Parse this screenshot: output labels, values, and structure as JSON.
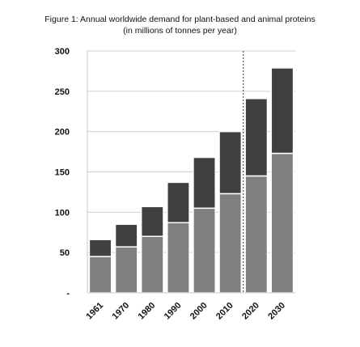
{
  "chart_data": {
    "type": "bar",
    "stacked": true,
    "title": "Figure 1: Annual worldwide demand for plant-based and animal proteins",
    "subtitle": "(in millions of tonnes per year)",
    "categories": [
      "1961",
      "1970",
      "1980",
      "1990",
      "2000",
      "2010",
      "2020",
      "2030"
    ],
    "series": [
      {
        "values": [
          45,
          57,
          70,
          87,
          105,
          123,
          145,
          173
        ],
        "color": "#7f7f7f"
      },
      {
        "values": [
          21,
          28,
          37,
          50,
          63,
          77,
          96,
          106
        ],
        "color": "#404040"
      }
    ],
    "yticks": [
      "-",
      "50",
      "100",
      "150",
      "200",
      "250",
      "300"
    ],
    "ylim": [
      0,
      300
    ],
    "grid": true,
    "reference_line_between": [
      "2010",
      "2020"
    ]
  }
}
